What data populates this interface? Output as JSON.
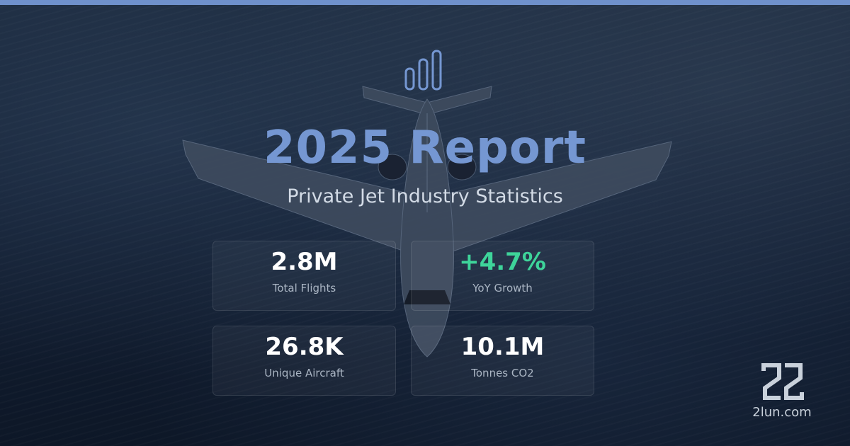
{
  "header": {
    "title": "2025 Report",
    "subtitle": "Private Jet Industry Statistics"
  },
  "stats": [
    {
      "value": "2.8M",
      "label": "Total Flights"
    },
    {
      "value": "+4.7%",
      "label": "YoY Growth"
    },
    {
      "value": "26.8K",
      "label": "Unique Aircraft"
    },
    {
      "value": "10.1M",
      "label": "Tonnes CO2"
    }
  ],
  "brand": {
    "site": "2lun.com",
    "logo_icon": "2lun-logo-icon"
  },
  "icons": {
    "chart": "bar-chart-icon"
  },
  "colors": {
    "accent": "#7597d2",
    "growth": "#3ed49a",
    "topbar": "#6f91cc",
    "background": "#0c1524"
  }
}
